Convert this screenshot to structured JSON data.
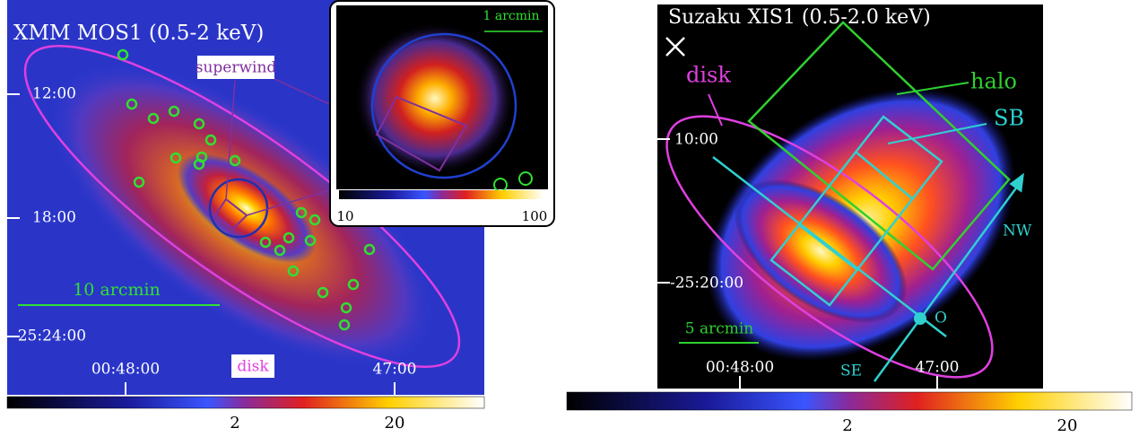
{
  "left": {
    "title": "XMM MOS1 (0.5-2 keV)",
    "dec_ticks": [
      "12:00",
      "18:00",
      "-25:24:00"
    ],
    "ra_ticks": [
      "00:48:00",
      "47:00"
    ],
    "scale_label": "10 arcmin",
    "labels": {
      "superwind": "superwind",
      "disk": "disk"
    },
    "colorbar_ticks": [
      "2",
      "20"
    ],
    "inset": {
      "scale_label": "1 arcmin",
      "colorbar_ticks": [
        "10",
        "100"
      ]
    }
  },
  "right": {
    "title": "Suzaku XIS1 (0.5-2.0 keV)",
    "dec_ticks": [
      "10:00",
      "-25:20:00"
    ],
    "ra_ticks": [
      "00:48:00",
      "47:00"
    ],
    "scale_label": "5 arcmin",
    "labels": {
      "disk": "disk",
      "halo": "halo",
      "sb": "SB",
      "nw": "NW",
      "se": "SE",
      "o": "O"
    },
    "colorbar_ticks": [
      "2",
      "20"
    ]
  }
}
